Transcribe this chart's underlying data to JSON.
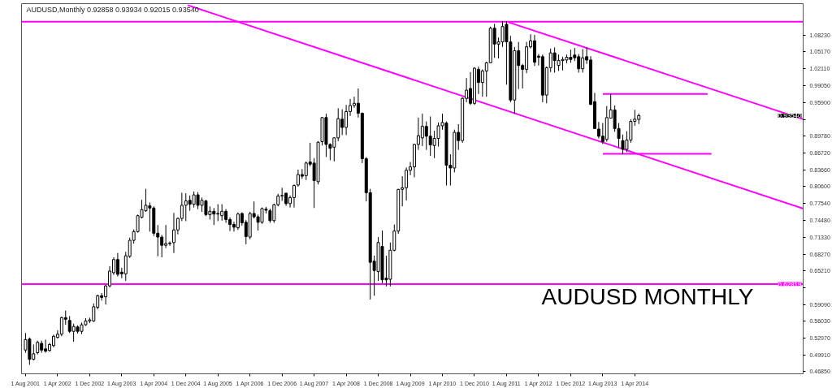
{
  "chart_data": {
    "type": "candlestick",
    "title": "AUDUSD,Monthly  0.92858 0.93934 0.92015 0.93540",
    "x": [
      "2001-08",
      "2001-09",
      "2001-10",
      "2001-11",
      "2001-12",
      "2002-01",
      "2002-02",
      "2002-03",
      "2002-04",
      "2002-05",
      "2002-06",
      "2002-07",
      "2002-08",
      "2002-09",
      "2002-10",
      "2002-11",
      "2002-12",
      "2003-01",
      "2003-02",
      "2003-03",
      "2003-04",
      "2003-05",
      "2003-06",
      "2003-07",
      "2003-08",
      "2003-09",
      "2003-10",
      "2003-11",
      "2003-12",
      "2004-01",
      "2004-02",
      "2004-03",
      "2004-04",
      "2004-05",
      "2004-06",
      "2004-07",
      "2004-08",
      "2004-09",
      "2004-10",
      "2004-11",
      "2004-12",
      "2005-01",
      "2005-02",
      "2005-03",
      "2005-04",
      "2005-05",
      "2005-06",
      "2005-07",
      "2005-08",
      "2005-09",
      "2005-10",
      "2005-11",
      "2005-12",
      "2006-01",
      "2006-02",
      "2006-03",
      "2006-04",
      "2006-05",
      "2006-06",
      "2006-07",
      "2006-08",
      "2006-09",
      "2006-10",
      "2006-11",
      "2006-12",
      "2007-01",
      "2007-02",
      "2007-03",
      "2007-04",
      "2007-05",
      "2007-06",
      "2007-07",
      "2007-08",
      "2007-09",
      "2007-10",
      "2007-11",
      "2007-12",
      "2008-01",
      "2008-02",
      "2008-03",
      "2008-04",
      "2008-05",
      "2008-06",
      "2008-07",
      "2008-08",
      "2008-09",
      "2008-10",
      "2008-11",
      "2008-12",
      "2009-01",
      "2009-02",
      "2009-03",
      "2009-04",
      "2009-05",
      "2009-06",
      "2009-07",
      "2009-08",
      "2009-09",
      "2009-10",
      "2009-11",
      "2009-12",
      "2010-01",
      "2010-02",
      "2010-03",
      "2010-04",
      "2010-05",
      "2010-06",
      "2010-07",
      "2010-08",
      "2010-09",
      "2010-10",
      "2010-11",
      "2010-12",
      "2011-01",
      "2011-02",
      "2011-03",
      "2011-04",
      "2011-05",
      "2011-06",
      "2011-07",
      "2011-08",
      "2011-09",
      "2011-10",
      "2011-11",
      "2011-12",
      "2012-01",
      "2012-02",
      "2012-03",
      "2012-04",
      "2012-05",
      "2012-06",
      "2012-07",
      "2012-08",
      "2012-09",
      "2012-10",
      "2012-11",
      "2012-12",
      "2013-01",
      "2013-02",
      "2013-03",
      "2013-04",
      "2013-05",
      "2013-06",
      "2013-07",
      "2013-08",
      "2013-09",
      "2013-10",
      "2013-11",
      "2013-12",
      "2014-01",
      "2014-02",
      "2014-03",
      "2014-04",
      "2014-05"
    ],
    "ohlc": [
      [
        0.508,
        0.539,
        0.503,
        0.527
      ],
      [
        0.528,
        0.531,
        0.481,
        0.491
      ],
      [
        0.491,
        0.518,
        0.489,
        0.501
      ],
      [
        0.503,
        0.525,
        0.5,
        0.522
      ],
      [
        0.52,
        0.525,
        0.503,
        0.508
      ],
      [
        0.51,
        0.527,
        0.503,
        0.506
      ],
      [
        0.507,
        0.521,
        0.505,
        0.518
      ],
      [
        0.516,
        0.536,
        0.513,
        0.533
      ],
      [
        0.531,
        0.544,
        0.529,
        0.537
      ],
      [
        0.537,
        0.569,
        0.533,
        0.567
      ],
      [
        0.567,
        0.58,
        0.554,
        0.564
      ],
      [
        0.562,
        0.57,
        0.539,
        0.542
      ],
      [
        0.542,
        0.556,
        0.523,
        0.551
      ],
      [
        0.55,
        0.553,
        0.538,
        0.542
      ],
      [
        0.542,
        0.558,
        0.537,
        0.554
      ],
      [
        0.554,
        0.566,
        0.552,
        0.561
      ],
      [
        0.561,
        0.567,
        0.557,
        0.563
      ],
      [
        0.561,
        0.593,
        0.559,
        0.587
      ],
      [
        0.586,
        0.609,
        0.582,
        0.607
      ],
      [
        0.607,
        0.612,
        0.598,
        0.604
      ],
      [
        0.605,
        0.627,
        0.591,
        0.625
      ],
      [
        0.625,
        0.661,
        0.622,
        0.652
      ],
      [
        0.649,
        0.677,
        0.645,
        0.673
      ],
      [
        0.673,
        0.685,
        0.642,
        0.646
      ],
      [
        0.65,
        0.658,
        0.639,
        0.647
      ],
      [
        0.647,
        0.687,
        0.634,
        0.68
      ],
      [
        0.679,
        0.713,
        0.676,
        0.708
      ],
      [
        0.708,
        0.728,
        0.702,
        0.724
      ],
      [
        0.724,
        0.755,
        0.722,
        0.753
      ],
      [
        0.75,
        0.782,
        0.748,
        0.764
      ],
      [
        0.762,
        0.802,
        0.76,
        0.772
      ],
      [
        0.771,
        0.777,
        0.724,
        0.767
      ],
      [
        0.767,
        0.77,
        0.716,
        0.721
      ],
      [
        0.721,
        0.736,
        0.679,
        0.714
      ],
      [
        0.714,
        0.718,
        0.677,
        0.699
      ],
      [
        0.699,
        0.736,
        0.694,
        0.702
      ],
      [
        0.702,
        0.706,
        0.698,
        0.703
      ],
      [
        0.704,
        0.758,
        0.685,
        0.727
      ],
      [
        0.727,
        0.75,
        0.719,
        0.748
      ],
      [
        0.748,
        0.795,
        0.743,
        0.772
      ],
      [
        0.772,
        0.794,
        0.743,
        0.78
      ],
      [
        0.781,
        0.79,
        0.762,
        0.774
      ],
      [
        0.774,
        0.797,
        0.768,
        0.791
      ],
      [
        0.791,
        0.796,
        0.765,
        0.772
      ],
      [
        0.772,
        0.786,
        0.76,
        0.781
      ],
      [
        0.78,
        0.782,
        0.752,
        0.755
      ],
      [
        0.755,
        0.77,
        0.746,
        0.761
      ],
      [
        0.761,
        0.767,
        0.736,
        0.756
      ],
      [
        0.757,
        0.774,
        0.743,
        0.756
      ],
      [
        0.753,
        0.774,
        0.744,
        0.761
      ],
      [
        0.761,
        0.765,
        0.74,
        0.746
      ],
      [
        0.746,
        0.75,
        0.725,
        0.737
      ],
      [
        0.737,
        0.742,
        0.724,
        0.732
      ],
      [
        0.731,
        0.759,
        0.727,
        0.756
      ],
      [
        0.757,
        0.759,
        0.735,
        0.74
      ],
      [
        0.741,
        0.745,
        0.701,
        0.715
      ],
      [
        0.714,
        0.76,
        0.71,
        0.757
      ],
      [
        0.757,
        0.779,
        0.748,
        0.751
      ],
      [
        0.751,
        0.755,
        0.726,
        0.741
      ],
      [
        0.741,
        0.768,
        0.738,
        0.766
      ],
      [
        0.765,
        0.769,
        0.757,
        0.763
      ],
      [
        0.762,
        0.766,
        0.74,
        0.744
      ],
      [
        0.744,
        0.775,
        0.74,
        0.773
      ],
      [
        0.773,
        0.793,
        0.77,
        0.789
      ],
      [
        0.789,
        0.804,
        0.78,
        0.79
      ],
      [
        0.794,
        0.795,
        0.771,
        0.775
      ],
      [
        0.775,
        0.79,
        0.768,
        0.786
      ],
      [
        0.786,
        0.81,
        0.768,
        0.808
      ],
      [
        0.809,
        0.837,
        0.806,
        0.828
      ],
      [
        0.828,
        0.838,
        0.82,
        0.825
      ],
      [
        0.826,
        0.852,
        0.818,
        0.849
      ],
      [
        0.851,
        0.886,
        0.843,
        0.847
      ],
      [
        0.849,
        0.858,
        0.767,
        0.817
      ],
      [
        0.815,
        0.889,
        0.81,
        0.887
      ],
      [
        0.888,
        0.933,
        0.881,
        0.932
      ],
      [
        0.932,
        0.939,
        0.86,
        0.883
      ],
      [
        0.883,
        0.885,
        0.854,
        0.876
      ],
      [
        0.878,
        0.896,
        0.852,
        0.895
      ],
      [
        0.895,
        0.949,
        0.889,
        0.93
      ],
      [
        0.929,
        0.947,
        0.9,
        0.914
      ],
      [
        0.914,
        0.955,
        0.9,
        0.943
      ],
      [
        0.943,
        0.966,
        0.935,
        0.954
      ],
      [
        0.954,
        0.97,
        0.95,
        0.958
      ],
      [
        0.958,
        0.985,
        0.932,
        0.94
      ],
      [
        0.94,
        0.941,
        0.849,
        0.857
      ],
      [
        0.857,
        0.86,
        0.779,
        0.795
      ],
      [
        0.795,
        0.802,
        0.6,
        0.668
      ],
      [
        0.67,
        0.68,
        0.607,
        0.653
      ],
      [
        0.651,
        0.714,
        0.634,
        0.704
      ],
      [
        0.697,
        0.726,
        0.63,
        0.636
      ],
      [
        0.639,
        0.68,
        0.624,
        0.636
      ],
      [
        0.637,
        0.704,
        0.624,
        0.69
      ],
      [
        0.69,
        0.737,
        0.688,
        0.725
      ],
      [
        0.725,
        0.802,
        0.72,
        0.801
      ],
      [
        0.801,
        0.825,
        0.77,
        0.804
      ],
      [
        0.804,
        0.841,
        0.781,
        0.836
      ],
      [
        0.836,
        0.851,
        0.827,
        0.842
      ],
      [
        0.842,
        0.884,
        0.823,
        0.883
      ],
      [
        0.883,
        0.932,
        0.873,
        0.899
      ],
      [
        0.895,
        0.939,
        0.88,
        0.916
      ],
      [
        0.916,
        0.925,
        0.873,
        0.898
      ],
      [
        0.898,
        0.934,
        0.862,
        0.882
      ],
      [
        0.881,
        0.908,
        0.858,
        0.894
      ],
      [
        0.894,
        0.923,
        0.879,
        0.917
      ],
      [
        0.917,
        0.939,
        0.91,
        0.923
      ],
      [
        0.922,
        0.925,
        0.808,
        0.845
      ],
      [
        0.845,
        0.865,
        0.808,
        0.84
      ],
      [
        0.84,
        0.91,
        0.832,
        0.905
      ],
      [
        0.905,
        0.92,
        0.873,
        0.89
      ],
      [
        0.89,
        0.969,
        0.886,
        0.967
      ],
      [
        0.967,
        1.004,
        0.96,
        0.982
      ],
      [
        0.985,
        1.015,
        0.955,
        0.958
      ],
      [
        0.958,
        1.024,
        0.955,
        1.022
      ],
      [
        1.02,
        1.025,
        0.975,
        0.996
      ],
      [
        0.996,
        1.02,
        0.97,
        1.017
      ],
      [
        1.017,
        1.034,
        0.97,
        1.032
      ],
      [
        1.032,
        1.098,
        1.031,
        1.095
      ],
      [
        1.095,
        1.103,
        1.041,
        1.066
      ],
      [
        1.066,
        1.078,
        1.04,
        1.07
      ],
      [
        1.07,
        1.108,
        1.061,
        1.098
      ],
      [
        1.102,
        1.108,
        0.992,
        1.07
      ],
      [
        1.07,
        1.081,
        0.96,
        0.964
      ],
      [
        0.964,
        1.061,
        0.939,
        1.054
      ],
      [
        1.054,
        1.07,
        0.984,
        1.027
      ],
      [
        1.027,
        1.03,
        0.985,
        1.02
      ],
      [
        1.02,
        1.07,
        1.013,
        1.061
      ],
      [
        1.061,
        1.084,
        1.058,
        1.072
      ],
      [
        1.072,
        1.083,
        1.026,
        1.033
      ],
      [
        1.044,
        1.048,
        1.027,
        1.042
      ],
      [
        1.043,
        1.047,
        0.96,
        0.973
      ],
      [
        0.973,
        1.025,
        0.958,
        1.023
      ],
      [
        1.023,
        1.058,
        1.015,
        1.05
      ],
      [
        1.05,
        1.06,
        1.014,
        1.036
      ],
      [
        1.027,
        1.047,
        1.017,
        1.036
      ],
      [
        1.036,
        1.043,
        1.018,
        1.038
      ],
      [
        1.037,
        1.047,
        1.031,
        1.042
      ],
      [
        1.042,
        1.056,
        1.032,
        1.038
      ],
      [
        1.046,
        1.059,
        1.035,
        1.041
      ],
      [
        1.043,
        1.048,
        1.014,
        1.021
      ],
      [
        1.021,
        1.057,
        1.014,
        1.041
      ],
      [
        1.043,
        1.06,
        1.03,
        1.037
      ],
      [
        1.037,
        1.044,
        0.955,
        0.956
      ],
      [
        0.961,
        0.977,
        0.911,
        0.912
      ],
      [
        0.911,
        0.924,
        0.894,
        0.898
      ],
      [
        0.898,
        0.922,
        0.884,
        0.888
      ],
      [
        0.892,
        0.953,
        0.888,
        0.932
      ],
      [
        0.931,
        0.975,
        0.93,
        0.946
      ],
      [
        0.946,
        0.954,
        0.906,
        0.912
      ],
      [
        0.912,
        0.922,
        0.878,
        0.894
      ],
      [
        0.89,
        0.901,
        0.865,
        0.874
      ],
      [
        0.874,
        0.907,
        0.869,
        0.891
      ],
      [
        0.891,
        0.929,
        0.886,
        0.925
      ],
      [
        0.925,
        0.946,
        0.917,
        0.929
      ],
      [
        0.92858,
        0.93934,
        0.92015,
        0.9354
      ]
    ],
    "series": [
      {
        "type": "line",
        "color": "#ff00ff",
        "x": [
          "2004-12-15",
          "2017-10-01"
        ],
        "values": [
          1.137,
          0.766
        ]
      },
      {
        "type": "line",
        "color": "#ff00ff",
        "x": [
          "2011-08-15",
          "2017-10-01"
        ],
        "values": [
          1.106,
          0.929
        ]
      },
      {
        "type": "line",
        "color": "#ff00ff",
        "x": [
          "2013-08-02",
          "2015-10-06"
        ],
        "values": [
          0.975,
          0.975
        ]
      },
      {
        "type": "line",
        "color": "#ff00ff",
        "x": [
          "2013-08-02",
          "2015-11-05"
        ],
        "values": [
          0.866,
          0.866
        ]
      }
    ],
    "ref_lines": [
      {
        "axis": "y",
        "value": 1.107,
        "color": "#ff00ff"
      },
      {
        "axis": "y",
        "value": 0.62819,
        "label": "0.62819",
        "color": "#ff00ff"
      }
    ],
    "annotations": [
      "AUDUSD  MONTHLY",
      {
        "text": "0.93540",
        "y": 0.9354
      }
    ],
    "xlim": [
      "2001-07",
      "2017-10"
    ],
    "xticks": [
      {
        "value": "2001-08",
        "label": "1 Aug 2001"
      },
      {
        "value": "2002-04",
        "label": "1 Apr 2002"
      },
      {
        "value": "2002-12",
        "label": "1 Dec 2002"
      },
      {
        "value": "2003-08",
        "label": "1 Aug 2003"
      },
      {
        "value": "2004-04",
        "label": "1 Apr 2004"
      },
      {
        "value": "2004-12",
        "label": "1 Dec 2004"
      },
      {
        "value": "2005-08",
        "label": "1 Aug 2005"
      },
      {
        "value": "2006-04",
        "label": "1 Apr 2006"
      },
      {
        "value": "2006-12",
        "label": "1 Dec 2006"
      },
      {
        "value": "2007-08",
        "label": "1 Aug 2007"
      },
      {
        "value": "2008-04",
        "label": "1 Apr 2008"
      },
      {
        "value": "2008-12",
        "label": "1 Dec 2008"
      },
      {
        "value": "2009-08",
        "label": "1 Aug 2009"
      },
      {
        "value": "2010-04",
        "label": "1 Apr 2010"
      },
      {
        "value": "2010-12",
        "label": "1 Dec 2010"
      },
      {
        "value": "2011-08",
        "label": "1 Aug 2011"
      },
      {
        "value": "2012-04",
        "label": "1 Apr 2012"
      },
      {
        "value": "2012-12",
        "label": "1 Dec 2012"
      },
      {
        "value": "2013-08",
        "label": "1 Aug 2013"
      },
      {
        "value": "2014-04",
        "label": "1 Apr 2014"
      }
    ],
    "ylim": [
      0.4646,
      1.1398
    ],
    "yticks": [
      {
        "value": 0.4685,
        "label": "0.46850"
      },
      {
        "value": 0.4991,
        "label": "0.49910"
      },
      {
        "value": 0.5297,
        "label": "0.52970"
      },
      {
        "value": 0.5603,
        "label": "0.56030"
      },
      {
        "value": 0.5909,
        "label": "0.59090"
      },
      {
        "value": 0.6215,
        "label": null
      },
      {
        "value": 0.6521,
        "label": "0.65210"
      },
      {
        "value": 0.6827,
        "label": "0.68270"
      },
      {
        "value": 0.7133,
        "label": "0.71330"
      },
      {
        "value": 0.7448,
        "label": "0.74480"
      },
      {
        "value": 0.7754,
        "label": "0.77540"
      },
      {
        "value": 0.806,
        "label": "0.80600"
      },
      {
        "value": 0.8366,
        "label": "0.83660"
      },
      {
        "value": 0.8672,
        "label": "0.86720"
      },
      {
        "value": 0.8978,
        "label": "0.89780"
      },
      {
        "value": 0.9284,
        "label": null
      },
      {
        "value": 0.959,
        "label": "0.95900"
      },
      {
        "value": 0.9905,
        "label": "0.99050"
      },
      {
        "value": 1.0211,
        "label": "1.02110"
      },
      {
        "value": 1.0517,
        "label": "1.05170"
      },
      {
        "value": 1.0823,
        "label": "1.08230"
      }
    ],
    "grid": false
  }
}
